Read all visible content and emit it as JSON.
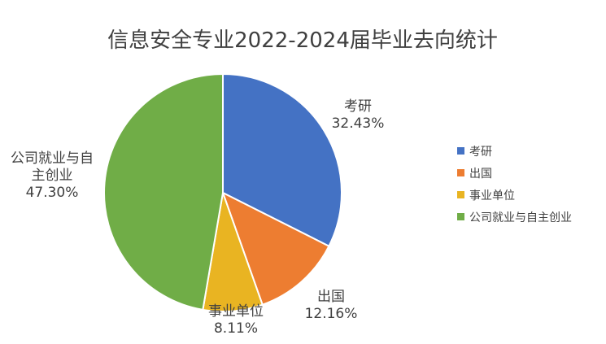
{
  "chart_data": {
    "type": "pie",
    "title": "信息安全专业2022-2024届毕业去向统计",
    "categories": [
      "考研",
      "出国",
      "事业单位",
      "公司就业与自主创业"
    ],
    "values": [
      32.43,
      12.16,
      8.11,
      47.3
    ],
    "value_labels": [
      "32.43%",
      "12.16%",
      "8.11%",
      "47.30%"
    ],
    "colors": [
      "#4472C4",
      "#ED7D31",
      "#E9B422",
      "#70AD47"
    ],
    "slice_border_color": "#ffffff",
    "legend": {
      "position": "right",
      "entries": [
        "考研",
        "出国",
        "事业单位",
        "公司就业与自主创业"
      ]
    }
  }
}
